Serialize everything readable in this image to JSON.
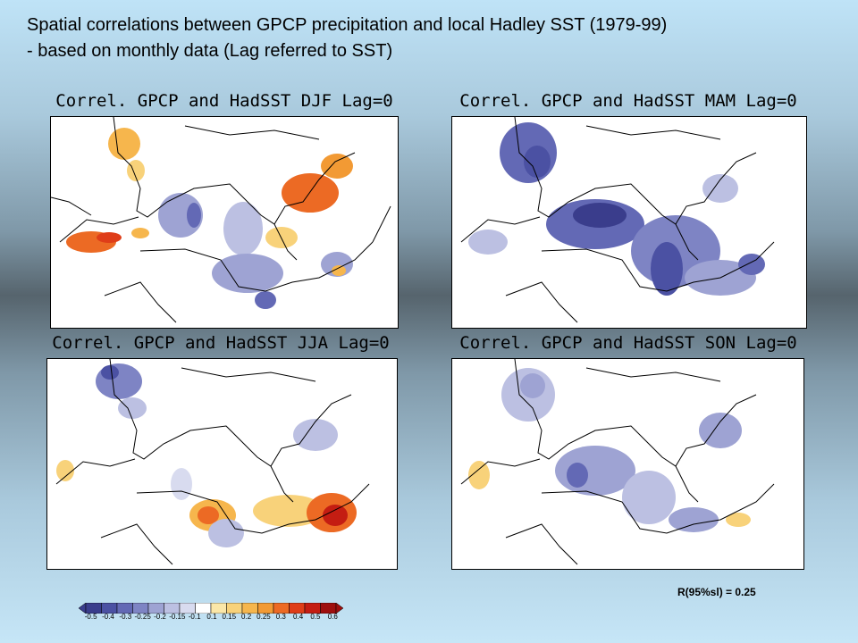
{
  "heading": {
    "line1": "Spatial correlations between GPCP precipitation and local Hadley SST (1979-99)",
    "line2": "- based on monthly data (Lag referred to SST)"
  },
  "panels": [
    {
      "season": "DJF",
      "title": "Correl. GPCP and HadSST DJF Lag=0"
    },
    {
      "season": "MAM",
      "title": "Correl. GPCP and HadSST MAM Lag=0"
    },
    {
      "season": "JJA",
      "title": "Correl. GPCP and HadSST JJA Lag=0"
    },
    {
      "season": "SON",
      "title": "Correl. GPCP and HadSST SON Lag=0"
    }
  ],
  "significance_note": "R(95%sl) = 0.25",
  "colorbar": {
    "labels": [
      "-0.5",
      "-0.4",
      "-0.3",
      "-0.25",
      "-0.2",
      "-0.15",
      "-0.1",
      "0.1",
      "0.15",
      "0.2",
      "0.25",
      "0.3",
      "0.4",
      "0.5",
      "0.6"
    ],
    "colors": [
      "#3a3d8c",
      "#4b51a3",
      "#6369b5",
      "#7e84c4",
      "#9ea3d3",
      "#bcc0e2",
      "#d8dbef",
      "#ffffff",
      "#fbe7a8",
      "#f8d27a",
      "#f6b64d",
      "#f29a34",
      "#ec6a24",
      "#df3d18",
      "#c41d12",
      "#9e0f0e"
    ]
  }
}
